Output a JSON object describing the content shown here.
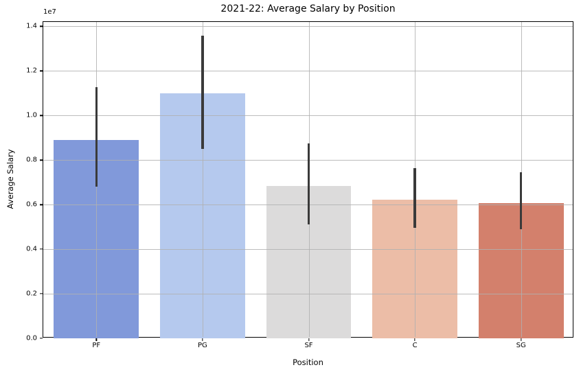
{
  "chart_data": {
    "type": "bar",
    "title": "2021-22: Average Salary by Position",
    "xlabel": "Position",
    "ylabel": "Average Salary",
    "offset_text": "1e7",
    "categories": [
      "PF",
      "PG",
      "SF",
      "C",
      "SG"
    ],
    "values": [
      8900000,
      11000000,
      6850000,
      6220000,
      6080000
    ],
    "error_low": [
      6800000,
      8510000,
      5100000,
      4970000,
      4910000
    ],
    "error_high": [
      11280000,
      13570000,
      8740000,
      7630000,
      7450000
    ],
    "bar_colors": [
      "#8199da",
      "#b5c9ee",
      "#dcdbdb",
      "#ecbda7",
      "#d3806c"
    ],
    "errorbar_color": "#3a3a3a",
    "ylim": [
      0,
      14200000
    ],
    "yticks": [
      0,
      2000000,
      4000000,
      6000000,
      8000000,
      10000000,
      12000000,
      14000000
    ],
    "ytick_labels": [
      "0.0",
      "0.2",
      "0.4",
      "0.6",
      "0.8",
      "1.0",
      "1.2",
      "1.4"
    ],
    "grid": true,
    "legend": "none"
  }
}
